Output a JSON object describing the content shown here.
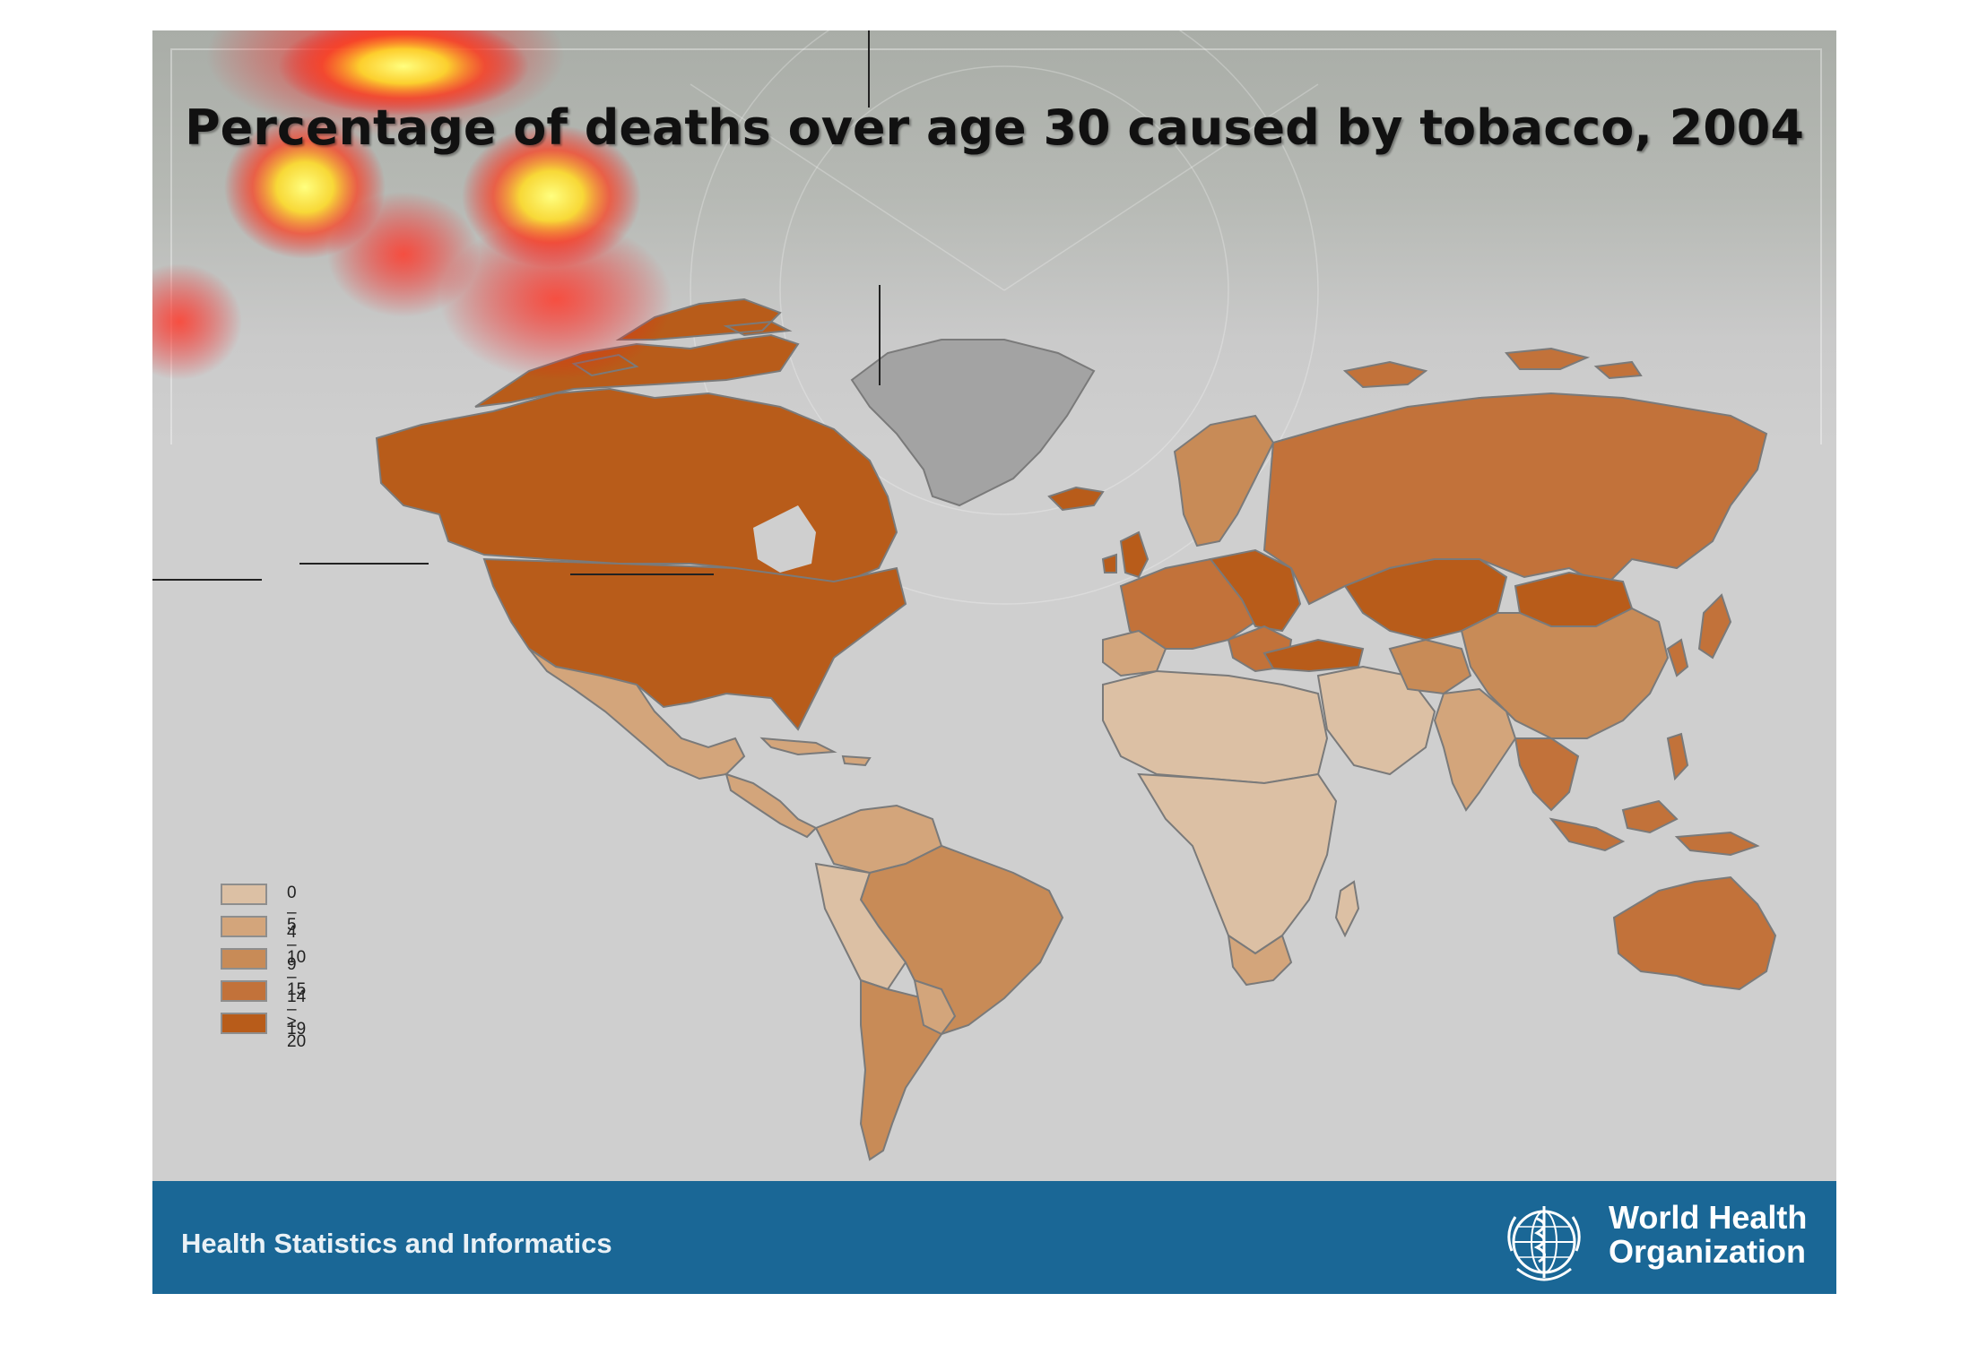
{
  "title": "Percentage of deaths over age 30 caused by tobacco, 2004",
  "footer": {
    "text": "Health Statistics and Informatics",
    "organization_line1": "World Health",
    "organization_line2": "Organization"
  },
  "legend": {
    "items": [
      {
        "label": "0 – 4",
        "color": "#dcc0a4"
      },
      {
        "label": "5 – 9",
        "color": "#d3a57b"
      },
      {
        "label": "10 – 14",
        "color": "#c88b57"
      },
      {
        "label": "15 – 19",
        "color": "#c2723a"
      },
      {
        "label": "≥ 20",
        "color": "#b85c1a"
      }
    ]
  },
  "colors": {
    "background": "#cfcfcf",
    "footer": "#1a6796",
    "no_data": "#a3a3a3"
  }
}
